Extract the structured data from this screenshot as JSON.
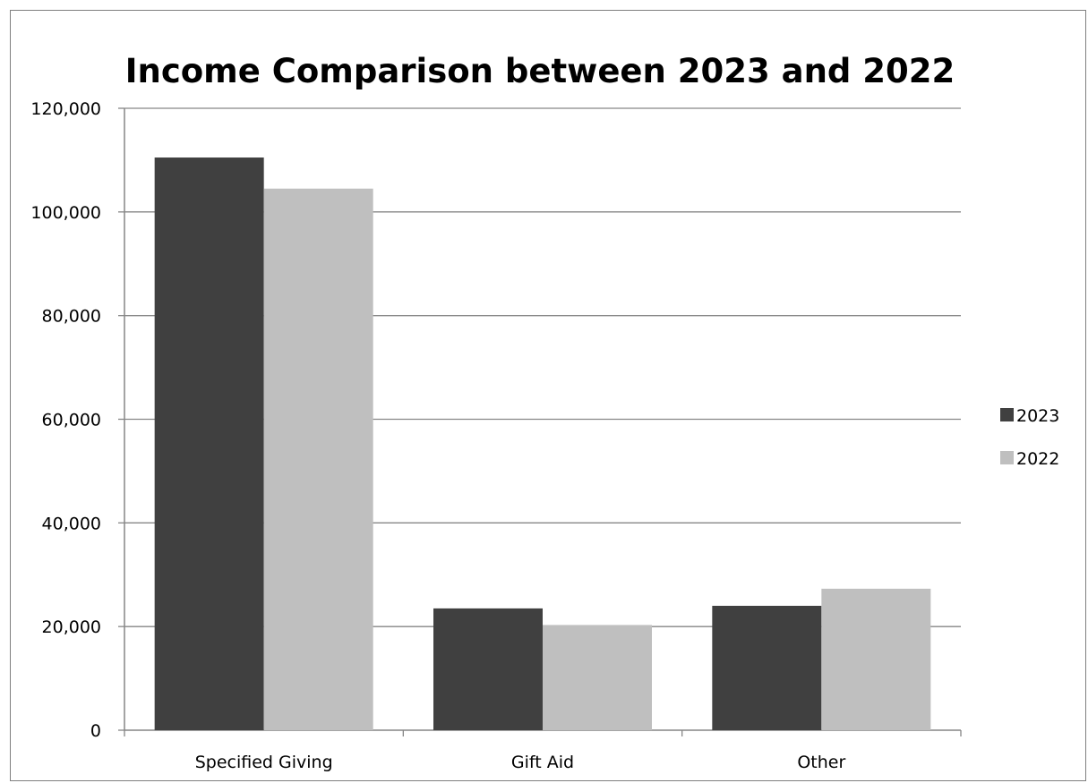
{
  "chart_data": {
    "type": "bar",
    "title": "Income Comparison between 2023 and 2022",
    "xlabel": "",
    "ylabel": "",
    "categories": [
      "Specified Giving",
      "Gift Aid",
      "Other"
    ],
    "series": [
      {
        "name": "2023",
        "color": "#404040",
        "values": [
          110500,
          23500,
          24000
        ]
      },
      {
        "name": "2022",
        "color": "#bfbfbf",
        "values": [
          104500,
          20300,
          27300
        ]
      }
    ],
    "ylim": [
      0,
      120000
    ],
    "yticks": [
      0,
      20000,
      40000,
      60000,
      80000,
      100000,
      120000
    ],
    "ytick_labels": [
      "0",
      "20,000",
      "40,000",
      "60,000",
      "80,000",
      "100,000",
      "120,000"
    ],
    "grid": true,
    "legend_position": "right"
  }
}
